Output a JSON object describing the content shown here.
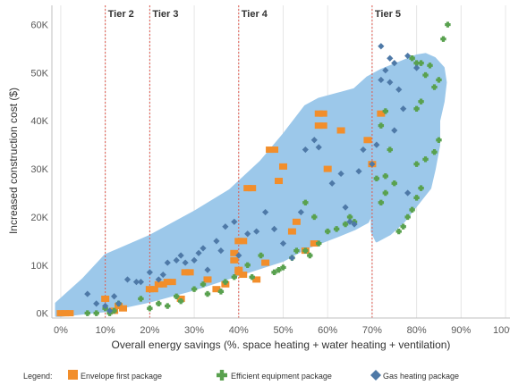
{
  "colors": {
    "cloud": "#9cc8ea",
    "envelope": "#f28e2b",
    "equipment": "#59a14f",
    "gas": "#4e79a7",
    "tier_line": "#e05a4f",
    "grid": "#e6e6e6",
    "axis": "#bfbfbf"
  },
  "chart_data": {
    "type": "scatter",
    "xlabel": "Overall energy savings (%. space heating + water heating + ventilation)",
    "ylabel": "Increased construction cost ($)",
    "xlim": [
      -0.02,
      1.01
    ],
    "ylim": [
      -1000,
      64000
    ],
    "x_ticks": [
      {
        "v": 0.0,
        "label": "0%"
      },
      {
        "v": 0.1,
        "label": "10%"
      },
      {
        "v": 0.2,
        "label": "20%"
      },
      {
        "v": 0.3,
        "label": "30%"
      },
      {
        "v": 0.4,
        "label": "40%"
      },
      {
        "v": 0.5,
        "label": "50%"
      },
      {
        "v": 0.6,
        "label": "60%"
      },
      {
        "v": 0.7,
        "label": "70%"
      },
      {
        "v": 0.8,
        "label": "80%"
      },
      {
        "v": 0.9,
        "label": "90%"
      },
      {
        "v": 1.0,
        "label": "100%"
      }
    ],
    "y_ticks": [
      {
        "v": 0,
        "label": "0K"
      },
      {
        "v": 10000,
        "label": "10K"
      },
      {
        "v": 20000,
        "label": "20K"
      },
      {
        "v": 30000,
        "label": "30K"
      },
      {
        "v": 40000,
        "label": "40K"
      },
      {
        "v": 50000,
        "label": "50K"
      },
      {
        "v": 60000,
        "label": "60K"
      }
    ],
    "grid": "vertical",
    "tiers": [
      {
        "label": "Tier 2",
        "x": 0.1
      },
      {
        "label": "Tier 3",
        "x": 0.2
      },
      {
        "label": "Tier 4",
        "x": 0.4
      },
      {
        "label": "Tier 5",
        "x": 0.7
      }
    ],
    "cloud_region": {
      "upper": [
        [
          -0.01,
          2000
        ],
        [
          0.05,
          7000
        ],
        [
          0.1,
          12000
        ],
        [
          0.2,
          16000
        ],
        [
          0.3,
          21000
        ],
        [
          0.38,
          25500
        ],
        [
          0.45,
          31500
        ],
        [
          0.5,
          37000
        ],
        [
          0.55,
          43000
        ],
        [
          0.58,
          44500
        ],
        [
          0.62,
          45500
        ],
        [
          0.66,
          46500
        ],
        [
          0.69,
          49000
        ],
        [
          0.72,
          50500
        ],
        [
          0.76,
          52000
        ],
        [
          0.8,
          53500
        ],
        [
          0.82,
          53800
        ],
        [
          0.84,
          53000
        ],
        [
          0.86,
          51000
        ],
        [
          0.865,
          48000
        ],
        [
          0.86,
          44000
        ],
        [
          0.85,
          40000
        ],
        [
          0.85,
          35000
        ],
        [
          0.84,
          30000
        ],
        [
          0.83,
          26000
        ],
        [
          0.8,
          22500
        ],
        [
          0.77,
          19000
        ],
        [
          0.74,
          16500
        ],
        [
          0.71,
          15000
        ],
        [
          0.7,
          17000
        ],
        [
          0.7,
          21000
        ]
      ],
      "lower": [
        [
          0.7,
          21000
        ],
        [
          0.69,
          19000
        ],
        [
          0.66,
          17500
        ],
        [
          0.62,
          16000
        ],
        [
          0.55,
          13500
        ],
        [
          0.5,
          11000
        ],
        [
          0.45,
          9500
        ],
        [
          0.4,
          8000
        ],
        [
          0.3,
          5000
        ],
        [
          0.2,
          2500
        ],
        [
          0.1,
          500
        ],
        [
          0.0,
          -500
        ],
        [
          -0.01,
          -500
        ]
      ]
    },
    "legend": {
      "title": "Legend:",
      "placement": "bottom",
      "items": [
        {
          "key": "envelope",
          "label": "Envelope first package",
          "marker": "square"
        },
        {
          "key": "equipment",
          "label": "Efficient equipment package",
          "marker": "plus"
        },
        {
          "key": "gas",
          "label": "Gas heating package",
          "marker": "diamond"
        }
      ]
    },
    "series": [
      {
        "name": "Envelope first package",
        "key": "envelope",
        "marker": "square",
        "points": [
          [
            0.0,
            0
          ],
          [
            0.01,
            0
          ],
          [
            0.02,
            0
          ],
          [
            0.1,
            3000
          ],
          [
            0.12,
            500
          ],
          [
            0.13,
            1500
          ],
          [
            0.14,
            1000
          ],
          [
            0.2,
            5000
          ],
          [
            0.21,
            5000
          ],
          [
            0.22,
            6000
          ],
          [
            0.23,
            6000
          ],
          [
            0.24,
            6500
          ],
          [
            0.25,
            6500
          ],
          [
            0.27,
            3000
          ],
          [
            0.28,
            8500
          ],
          [
            0.29,
            8500
          ],
          [
            0.33,
            7000
          ],
          [
            0.35,
            5000
          ],
          [
            0.37,
            6000
          ],
          [
            0.39,
            11000
          ],
          [
            0.39,
            12500
          ],
          [
            0.4,
            15000
          ],
          [
            0.41,
            15000
          ],
          [
            0.4,
            9000
          ],
          [
            0.4,
            8500
          ],
          [
            0.41,
            8000
          ],
          [
            0.42,
            26000
          ],
          [
            0.43,
            26000
          ],
          [
            0.44,
            7000
          ],
          [
            0.46,
            10500
          ],
          [
            0.47,
            34000
          ],
          [
            0.48,
            34000
          ],
          [
            0.49,
            27500
          ],
          [
            0.5,
            30500
          ],
          [
            0.52,
            17000
          ],
          [
            0.53,
            19000
          ],
          [
            0.55,
            13000
          ],
          [
            0.57,
            14500
          ],
          [
            0.58,
            39000
          ],
          [
            0.59,
            39000
          ],
          [
            0.58,
            41500
          ],
          [
            0.59,
            41500
          ],
          [
            0.6,
            30000
          ],
          [
            0.63,
            38000
          ],
          [
            0.69,
            36000
          ],
          [
            0.7,
            31000
          ],
          [
            0.72,
            41500
          ]
        ]
      },
      {
        "name": "Efficient equipment package",
        "key": "equipment",
        "marker": "plus",
        "points": [
          [
            0.06,
            0
          ],
          [
            0.08,
            0
          ],
          [
            0.1,
            1000
          ],
          [
            0.11,
            0
          ],
          [
            0.12,
            500
          ],
          [
            0.13,
            2000
          ],
          [
            0.18,
            3000
          ],
          [
            0.2,
            1000
          ],
          [
            0.22,
            2000
          ],
          [
            0.24,
            1500
          ],
          [
            0.26,
            3500
          ],
          [
            0.27,
            2500
          ],
          [
            0.3,
            5000
          ],
          [
            0.32,
            6000
          ],
          [
            0.33,
            4000
          ],
          [
            0.36,
            4500
          ],
          [
            0.37,
            6500
          ],
          [
            0.39,
            7500
          ],
          [
            0.42,
            10000
          ],
          [
            0.43,
            7500
          ],
          [
            0.45,
            12000
          ],
          [
            0.48,
            8500
          ],
          [
            0.49,
            9000
          ],
          [
            0.5,
            9500
          ],
          [
            0.52,
            11500
          ],
          [
            0.53,
            13000
          ],
          [
            0.55,
            13000
          ],
          [
            0.56,
            12000
          ],
          [
            0.58,
            14500
          ],
          [
            0.6,
            17000
          ],
          [
            0.62,
            17500
          ],
          [
            0.64,
            18500
          ],
          [
            0.65,
            20000
          ],
          [
            0.66,
            19000
          ],
          [
            0.55,
            23000
          ],
          [
            0.57,
            20000
          ],
          [
            0.72,
            23000
          ],
          [
            0.73,
            25000
          ],
          [
            0.75,
            27000
          ],
          [
            0.71,
            28000
          ],
          [
            0.73,
            28500
          ],
          [
            0.74,
            34000
          ],
          [
            0.72,
            39000
          ],
          [
            0.73,
            42000
          ],
          [
            0.76,
            17000
          ],
          [
            0.77,
            18000
          ],
          [
            0.78,
            20000
          ],
          [
            0.79,
            21500
          ],
          [
            0.8,
            24000
          ],
          [
            0.81,
            26000
          ],
          [
            0.8,
            31000
          ],
          [
            0.82,
            32000
          ],
          [
            0.84,
            33500
          ],
          [
            0.85,
            36000
          ],
          [
            0.8,
            42500
          ],
          [
            0.81,
            44000
          ],
          [
            0.84,
            47000
          ],
          [
            0.85,
            48500
          ],
          [
            0.82,
            49500
          ],
          [
            0.83,
            51500
          ],
          [
            0.8,
            52000
          ],
          [
            0.81,
            52000
          ],
          [
            0.79,
            53000
          ],
          [
            0.86,
            57000
          ],
          [
            0.87,
            60000
          ]
        ]
      },
      {
        "name": "Gas heating package",
        "key": "gas",
        "marker": "diamond",
        "points": [
          [
            0.06,
            4000
          ],
          [
            0.08,
            2000
          ],
          [
            0.1,
            1500
          ],
          [
            0.11,
            500
          ],
          [
            0.12,
            3500
          ],
          [
            0.13,
            2000
          ],
          [
            0.15,
            7000
          ],
          [
            0.17,
            6500
          ],
          [
            0.18,
            6500
          ],
          [
            0.2,
            8500
          ],
          [
            0.22,
            7000
          ],
          [
            0.23,
            8000
          ],
          [
            0.24,
            10500
          ],
          [
            0.26,
            11000
          ],
          [
            0.27,
            12000
          ],
          [
            0.28,
            10500
          ],
          [
            0.3,
            11000
          ],
          [
            0.31,
            12500
          ],
          [
            0.32,
            13500
          ],
          [
            0.33,
            9000
          ],
          [
            0.35,
            15000
          ],
          [
            0.36,
            13000
          ],
          [
            0.37,
            18000
          ],
          [
            0.39,
            19000
          ],
          [
            0.4,
            12000
          ],
          [
            0.42,
            16500
          ],
          [
            0.44,
            17000
          ],
          [
            0.46,
            21000
          ],
          [
            0.48,
            17500
          ],
          [
            0.5,
            14500
          ],
          [
            0.52,
            11500
          ],
          [
            0.54,
            21000
          ],
          [
            0.55,
            34000
          ],
          [
            0.57,
            36000
          ],
          [
            0.58,
            34500
          ],
          [
            0.61,
            27000
          ],
          [
            0.63,
            29000
          ],
          [
            0.64,
            22000
          ],
          [
            0.65,
            19000
          ],
          [
            0.66,
            18500
          ],
          [
            0.67,
            29500
          ],
          [
            0.68,
            34000
          ],
          [
            0.7,
            31000
          ],
          [
            0.71,
            35000
          ],
          [
            0.72,
            48500
          ],
          [
            0.73,
            50500
          ],
          [
            0.75,
            52000
          ],
          [
            0.76,
            46500
          ],
          [
            0.77,
            42500
          ],
          [
            0.78,
            53500
          ],
          [
            0.8,
            51000
          ],
          [
            0.72,
            55500
          ],
          [
            0.74,
            53000
          ],
          [
            0.74,
            48000
          ],
          [
            0.75,
            38000
          ],
          [
            0.78,
            25000
          ]
        ]
      }
    ]
  }
}
